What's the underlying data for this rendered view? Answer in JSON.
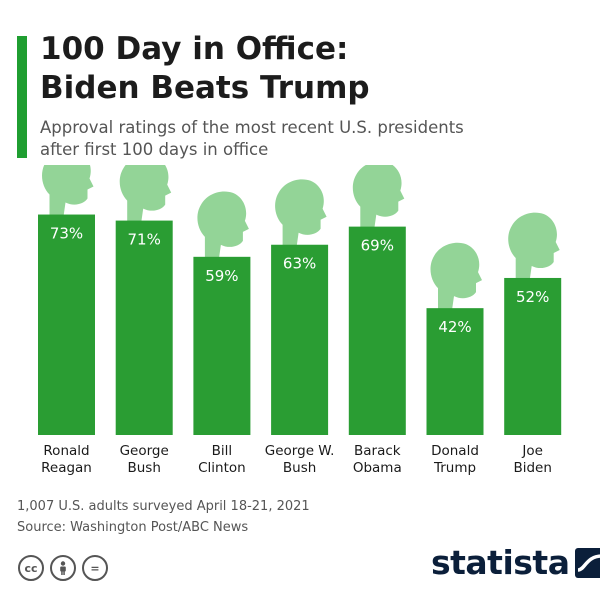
{
  "header": {
    "title_line1": "100 Day in Office:",
    "title_line2": "Biden Beats Trump",
    "subtitle_line1": "Approval ratings of the most recent U.S. presidents",
    "subtitle_line2": "after first 100 days in office"
  },
  "chart_data": {
    "type": "bar",
    "categories": [
      [
        "Ronald",
        "Reagan"
      ],
      [
        "George",
        "Bush"
      ],
      [
        "Bill",
        "Clinton"
      ],
      [
        "George W.",
        "Bush"
      ],
      [
        "Barack",
        "Obama"
      ],
      [
        "Donald",
        "Trump"
      ],
      [
        "Joe",
        "Biden"
      ]
    ],
    "values": [
      73,
      71,
      59,
      63,
      69,
      42,
      52
    ],
    "value_labels": [
      "73%",
      "71%",
      "59%",
      "63%",
      "69%",
      "42%",
      "52%"
    ],
    "xlabel": "",
    "ylabel": "",
    "ylim": [
      0,
      100
    ],
    "grid": false,
    "legend": "none"
  },
  "footnote": {
    "line1": "1,007 U.S. adults surveyed April 18-21, 2021",
    "line2": "Source: Washington Post/ABC News"
  },
  "footer": {
    "brand": "statista",
    "license_icons": [
      "cc-icon",
      "person-icon",
      "equals-icon"
    ],
    "license_glyphs": [
      "cc",
      "",
      "="
    ]
  },
  "colors": {
    "accent": "#1f9e31",
    "bar": "#2a9d33",
    "bar_label": "#ffffff",
    "head": "#93d497",
    "navy": "#0b1f3a"
  }
}
